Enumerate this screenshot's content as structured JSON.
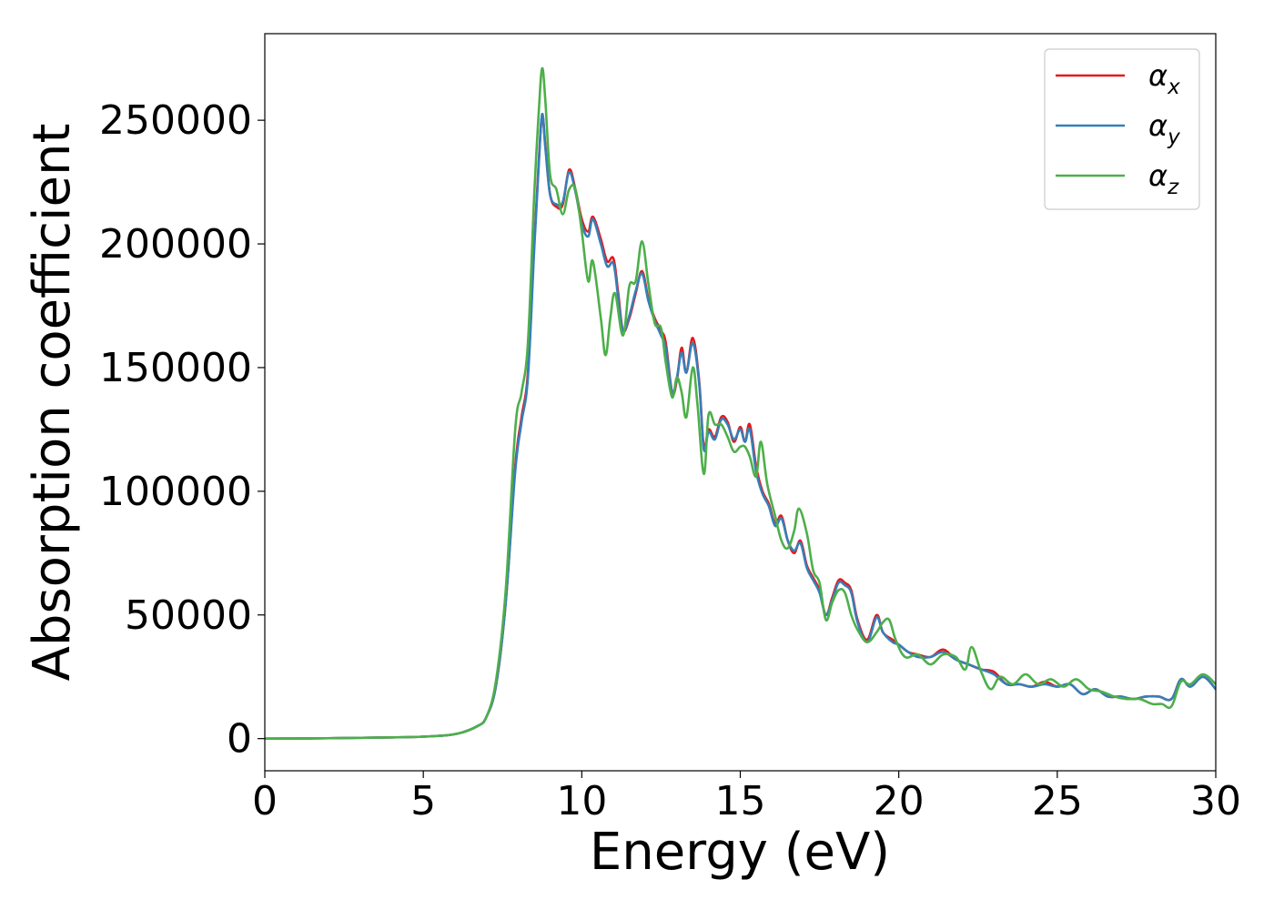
{
  "chart_data": {
    "type": "line",
    "title": "",
    "xlabel": "Energy (eV)",
    "ylabel": "Absorption coefficient",
    "xlim": [
      0,
      30
    ],
    "ylim": [
      -13000,
      285000
    ],
    "xticks": [
      0,
      5,
      10,
      15,
      20,
      25,
      30
    ],
    "xtick_labels": [
      "0",
      "5",
      "10",
      "15",
      "20",
      "25",
      "30"
    ],
    "yticks": [
      0,
      50000,
      100000,
      150000,
      200000,
      250000
    ],
    "ytick_labels": [
      "0",
      "50000",
      "100000",
      "150000",
      "200000",
      "250000"
    ],
    "grid": false,
    "legend_position": "top-right",
    "series": [
      {
        "name": "α_x",
        "legend_base": "α",
        "legend_sub": "x",
        "color": "#e41a1c",
        "points": [
          [
            0,
            0
          ],
          [
            2,
            150
          ],
          [
            4,
            500
          ],
          [
            5,
            800
          ],
          [
            6,
            1800
          ],
          [
            6.7,
            5000
          ],
          [
            7.0,
            9000
          ],
          [
            7.3,
            22000
          ],
          [
            7.6,
            55000
          ],
          [
            7.9,
            110000
          ],
          [
            8.1,
            130000
          ],
          [
            8.3,
            148000
          ],
          [
            8.5,
            200000
          ],
          [
            8.65,
            235000
          ],
          [
            8.75,
            252000
          ],
          [
            8.85,
            240000
          ],
          [
            9.0,
            220000
          ],
          [
            9.2,
            215000
          ],
          [
            9.4,
            216000
          ],
          [
            9.6,
            230000
          ],
          [
            9.8,
            222000
          ],
          [
            10.0,
            210000
          ],
          [
            10.2,
            205000
          ],
          [
            10.35,
            211000
          ],
          [
            10.6,
            202000
          ],
          [
            10.8,
            193000
          ],
          [
            11.0,
            194000
          ],
          [
            11.15,
            180000
          ],
          [
            11.3,
            165000
          ],
          [
            11.5,
            170000
          ],
          [
            11.7,
            180000
          ],
          [
            11.9,
            189000
          ],
          [
            12.1,
            178000
          ],
          [
            12.3,
            170000
          ],
          [
            12.5,
            165000
          ],
          [
            12.65,
            160000
          ],
          [
            12.85,
            140000
          ],
          [
            13.0,
            145000
          ],
          [
            13.15,
            158000
          ],
          [
            13.3,
            148000
          ],
          [
            13.5,
            162000
          ],
          [
            13.7,
            145000
          ],
          [
            13.85,
            118000
          ],
          [
            14.0,
            125000
          ],
          [
            14.2,
            122000
          ],
          [
            14.4,
            130000
          ],
          [
            14.6,
            128000
          ],
          [
            14.8,
            120000
          ],
          [
            15.0,
            126000
          ],
          [
            15.15,
            120000
          ],
          [
            15.3,
            127000
          ],
          [
            15.5,
            110000
          ],
          [
            15.7,
            100000
          ],
          [
            15.9,
            95000
          ],
          [
            16.1,
            87000
          ],
          [
            16.3,
            90000
          ],
          [
            16.5,
            80000
          ],
          [
            16.7,
            75000
          ],
          [
            16.9,
            80000
          ],
          [
            17.1,
            70000
          ],
          [
            17.3,
            65000
          ],
          [
            17.5,
            60000
          ],
          [
            17.7,
            50000
          ],
          [
            17.9,
            57000
          ],
          [
            18.1,
            64000
          ],
          [
            18.3,
            63000
          ],
          [
            18.5,
            60000
          ],
          [
            18.7,
            48000
          ],
          [
            19.0,
            40000
          ],
          [
            19.3,
            50000
          ],
          [
            19.5,
            43000
          ],
          [
            19.8,
            40000
          ],
          [
            20.0,
            38000
          ],
          [
            20.3,
            35000
          ],
          [
            20.6,
            34000
          ],
          [
            21.0,
            33000
          ],
          [
            21.4,
            36000
          ],
          [
            21.8,
            32000
          ],
          [
            22.2,
            30000
          ],
          [
            22.6,
            28000
          ],
          [
            23.0,
            27000
          ],
          [
            23.4,
            22000
          ],
          [
            23.8,
            22000
          ],
          [
            24.2,
            21000
          ],
          [
            24.6,
            23000
          ],
          [
            25.0,
            21000
          ],
          [
            25.4,
            22000
          ],
          [
            25.8,
            18000
          ],
          [
            26.2,
            20000
          ],
          [
            26.6,
            17000
          ],
          [
            27.0,
            17000
          ],
          [
            27.4,
            16000
          ],
          [
            27.8,
            17000
          ],
          [
            28.2,
            17000
          ],
          [
            28.6,
            16000
          ],
          [
            28.9,
            24000
          ],
          [
            29.2,
            21000
          ],
          [
            29.6,
            25000
          ],
          [
            30.0,
            20000
          ]
        ]
      },
      {
        "name": "α_y",
        "legend_base": "α",
        "legend_sub": "y",
        "color": "#377eb8",
        "points": [
          [
            0,
            0
          ],
          [
            2,
            150
          ],
          [
            4,
            500
          ],
          [
            5,
            800
          ],
          [
            6,
            1800
          ],
          [
            6.7,
            5000
          ],
          [
            7.0,
            9000
          ],
          [
            7.3,
            22000
          ],
          [
            7.6,
            55000
          ],
          [
            7.9,
            108000
          ],
          [
            8.1,
            128000
          ],
          [
            8.3,
            146000
          ],
          [
            8.5,
            198000
          ],
          [
            8.65,
            234000
          ],
          [
            8.75,
            252500
          ],
          [
            8.85,
            239000
          ],
          [
            9.0,
            220000
          ],
          [
            9.2,
            216000
          ],
          [
            9.4,
            217000
          ],
          [
            9.6,
            229000
          ],
          [
            9.8,
            221000
          ],
          [
            10.0,
            208000
          ],
          [
            10.2,
            203000
          ],
          [
            10.35,
            210000
          ],
          [
            10.6,
            200000
          ],
          [
            10.8,
            191000
          ],
          [
            11.0,
            192000
          ],
          [
            11.15,
            178000
          ],
          [
            11.3,
            165000
          ],
          [
            11.5,
            171000
          ],
          [
            11.7,
            181000
          ],
          [
            11.9,
            188000
          ],
          [
            12.1,
            177000
          ],
          [
            12.3,
            169000
          ],
          [
            12.5,
            163000
          ],
          [
            12.65,
            158000
          ],
          [
            12.85,
            140000
          ],
          [
            13.0,
            146000
          ],
          [
            13.15,
            156000
          ],
          [
            13.3,
            148000
          ],
          [
            13.5,
            160000
          ],
          [
            13.7,
            144000
          ],
          [
            13.85,
            117000
          ],
          [
            14.0,
            124000
          ],
          [
            14.2,
            121000
          ],
          [
            14.4,
            129000
          ],
          [
            14.6,
            127000
          ],
          [
            14.8,
            121000
          ],
          [
            15.0,
            125000
          ],
          [
            15.15,
            120000
          ],
          [
            15.3,
            125000
          ],
          [
            15.5,
            108000
          ],
          [
            15.7,
            99000
          ],
          [
            15.9,
            94000
          ],
          [
            16.1,
            86000
          ],
          [
            16.3,
            89000
          ],
          [
            16.5,
            80000
          ],
          [
            16.7,
            76000
          ],
          [
            16.9,
            79000
          ],
          [
            17.1,
            69000
          ],
          [
            17.3,
            64000
          ],
          [
            17.5,
            59000
          ],
          [
            17.7,
            50000
          ],
          [
            17.9,
            56000
          ],
          [
            18.1,
            63000
          ],
          [
            18.3,
            62000
          ],
          [
            18.5,
            59000
          ],
          [
            18.7,
            47000
          ],
          [
            19.0,
            39000
          ],
          [
            19.3,
            49000
          ],
          [
            19.5,
            43000
          ],
          [
            19.8,
            39000
          ],
          [
            20.0,
            38000
          ],
          [
            20.3,
            35000
          ],
          [
            20.6,
            33000
          ],
          [
            21.0,
            33000
          ],
          [
            21.4,
            35000
          ],
          [
            21.8,
            32000
          ],
          [
            22.2,
            30000
          ],
          [
            22.6,
            28000
          ],
          [
            23.0,
            26000
          ],
          [
            23.4,
            22000
          ],
          [
            23.8,
            22000
          ],
          [
            24.2,
            21000
          ],
          [
            24.6,
            22000
          ],
          [
            25.0,
            21000
          ],
          [
            25.4,
            22000
          ],
          [
            25.8,
            18000
          ],
          [
            26.2,
            20000
          ],
          [
            26.6,
            17000
          ],
          [
            27.0,
            17000
          ],
          [
            27.4,
            16000
          ],
          [
            27.8,
            17000
          ],
          [
            28.2,
            17000
          ],
          [
            28.6,
            16000
          ],
          [
            28.9,
            24000
          ],
          [
            29.2,
            21000
          ],
          [
            29.6,
            25000
          ],
          [
            30.0,
            20000
          ]
        ]
      },
      {
        "name": "α_z",
        "legend_base": "α",
        "legend_sub": "z",
        "color": "#4daf4a",
        "points": [
          [
            0,
            0
          ],
          [
            2,
            150
          ],
          [
            4,
            500
          ],
          [
            5,
            800
          ],
          [
            6,
            1800
          ],
          [
            6.7,
            5000
          ],
          [
            7.0,
            9000
          ],
          [
            7.3,
            24000
          ],
          [
            7.6,
            60000
          ],
          [
            7.9,
            125000
          ],
          [
            8.1,
            140000
          ],
          [
            8.3,
            160000
          ],
          [
            8.5,
            220000
          ],
          [
            8.65,
            255000
          ],
          [
            8.75,
            271000
          ],
          [
            8.85,
            258000
          ],
          [
            9.0,
            228000
          ],
          [
            9.2,
            222000
          ],
          [
            9.4,
            212000
          ],
          [
            9.6,
            222000
          ],
          [
            9.8,
            222000
          ],
          [
            10.0,
            205000
          ],
          [
            10.2,
            185000
          ],
          [
            10.35,
            193000
          ],
          [
            10.6,
            170000
          ],
          [
            10.75,
            155000
          ],
          [
            10.9,
            170000
          ],
          [
            11.05,
            180000
          ],
          [
            11.3,
            163000
          ],
          [
            11.5,
            183000
          ],
          [
            11.7,
            185000
          ],
          [
            11.9,
            201000
          ],
          [
            12.1,
            184000
          ],
          [
            12.3,
            168000
          ],
          [
            12.5,
            166000
          ],
          [
            12.65,
            152000
          ],
          [
            12.85,
            138000
          ],
          [
            13.0,
            146000
          ],
          [
            13.15,
            140000
          ],
          [
            13.3,
            130000
          ],
          [
            13.5,
            150000
          ],
          [
            13.65,
            135000
          ],
          [
            13.85,
            107000
          ],
          [
            14.0,
            131000
          ],
          [
            14.2,
            127000
          ],
          [
            14.4,
            127000
          ],
          [
            14.6,
            122000
          ],
          [
            14.8,
            116000
          ],
          [
            15.0,
            118000
          ],
          [
            15.15,
            118000
          ],
          [
            15.3,
            114000
          ],
          [
            15.5,
            106000
          ],
          [
            15.65,
            120000
          ],
          [
            15.85,
            103000
          ],
          [
            16.1,
            90000
          ],
          [
            16.3,
            80000
          ],
          [
            16.5,
            77000
          ],
          [
            16.7,
            84000
          ],
          [
            16.85,
            93000
          ],
          [
            17.1,
            83000
          ],
          [
            17.3,
            68000
          ],
          [
            17.5,
            63000
          ],
          [
            17.7,
            48000
          ],
          [
            17.9,
            55000
          ],
          [
            18.1,
            60000
          ],
          [
            18.3,
            59000
          ],
          [
            18.5,
            50000
          ],
          [
            18.7,
            44000
          ],
          [
            19.0,
            39000
          ],
          [
            19.3,
            43000
          ],
          [
            19.5,
            47000
          ],
          [
            19.7,
            48000
          ],
          [
            19.9,
            40000
          ],
          [
            20.2,
            33000
          ],
          [
            20.6,
            34000
          ],
          [
            21.0,
            30000
          ],
          [
            21.4,
            34000
          ],
          [
            21.8,
            33000
          ],
          [
            22.1,
            28000
          ],
          [
            22.3,
            37000
          ],
          [
            22.6,
            27000
          ],
          [
            22.9,
            20000
          ],
          [
            23.2,
            25000
          ],
          [
            23.6,
            22000
          ],
          [
            24.0,
            26000
          ],
          [
            24.4,
            22000
          ],
          [
            24.8,
            24000
          ],
          [
            25.2,
            21000
          ],
          [
            25.6,
            24000
          ],
          [
            26.0,
            20000
          ],
          [
            26.4,
            19000
          ],
          [
            26.8,
            17000
          ],
          [
            27.2,
            16000
          ],
          [
            27.6,
            16000
          ],
          [
            28.0,
            14000
          ],
          [
            28.3,
            14000
          ],
          [
            28.6,
            13000
          ],
          [
            28.9,
            23000
          ],
          [
            29.2,
            22000
          ],
          [
            29.6,
            26000
          ],
          [
            30.0,
            22000
          ]
        ]
      }
    ]
  }
}
